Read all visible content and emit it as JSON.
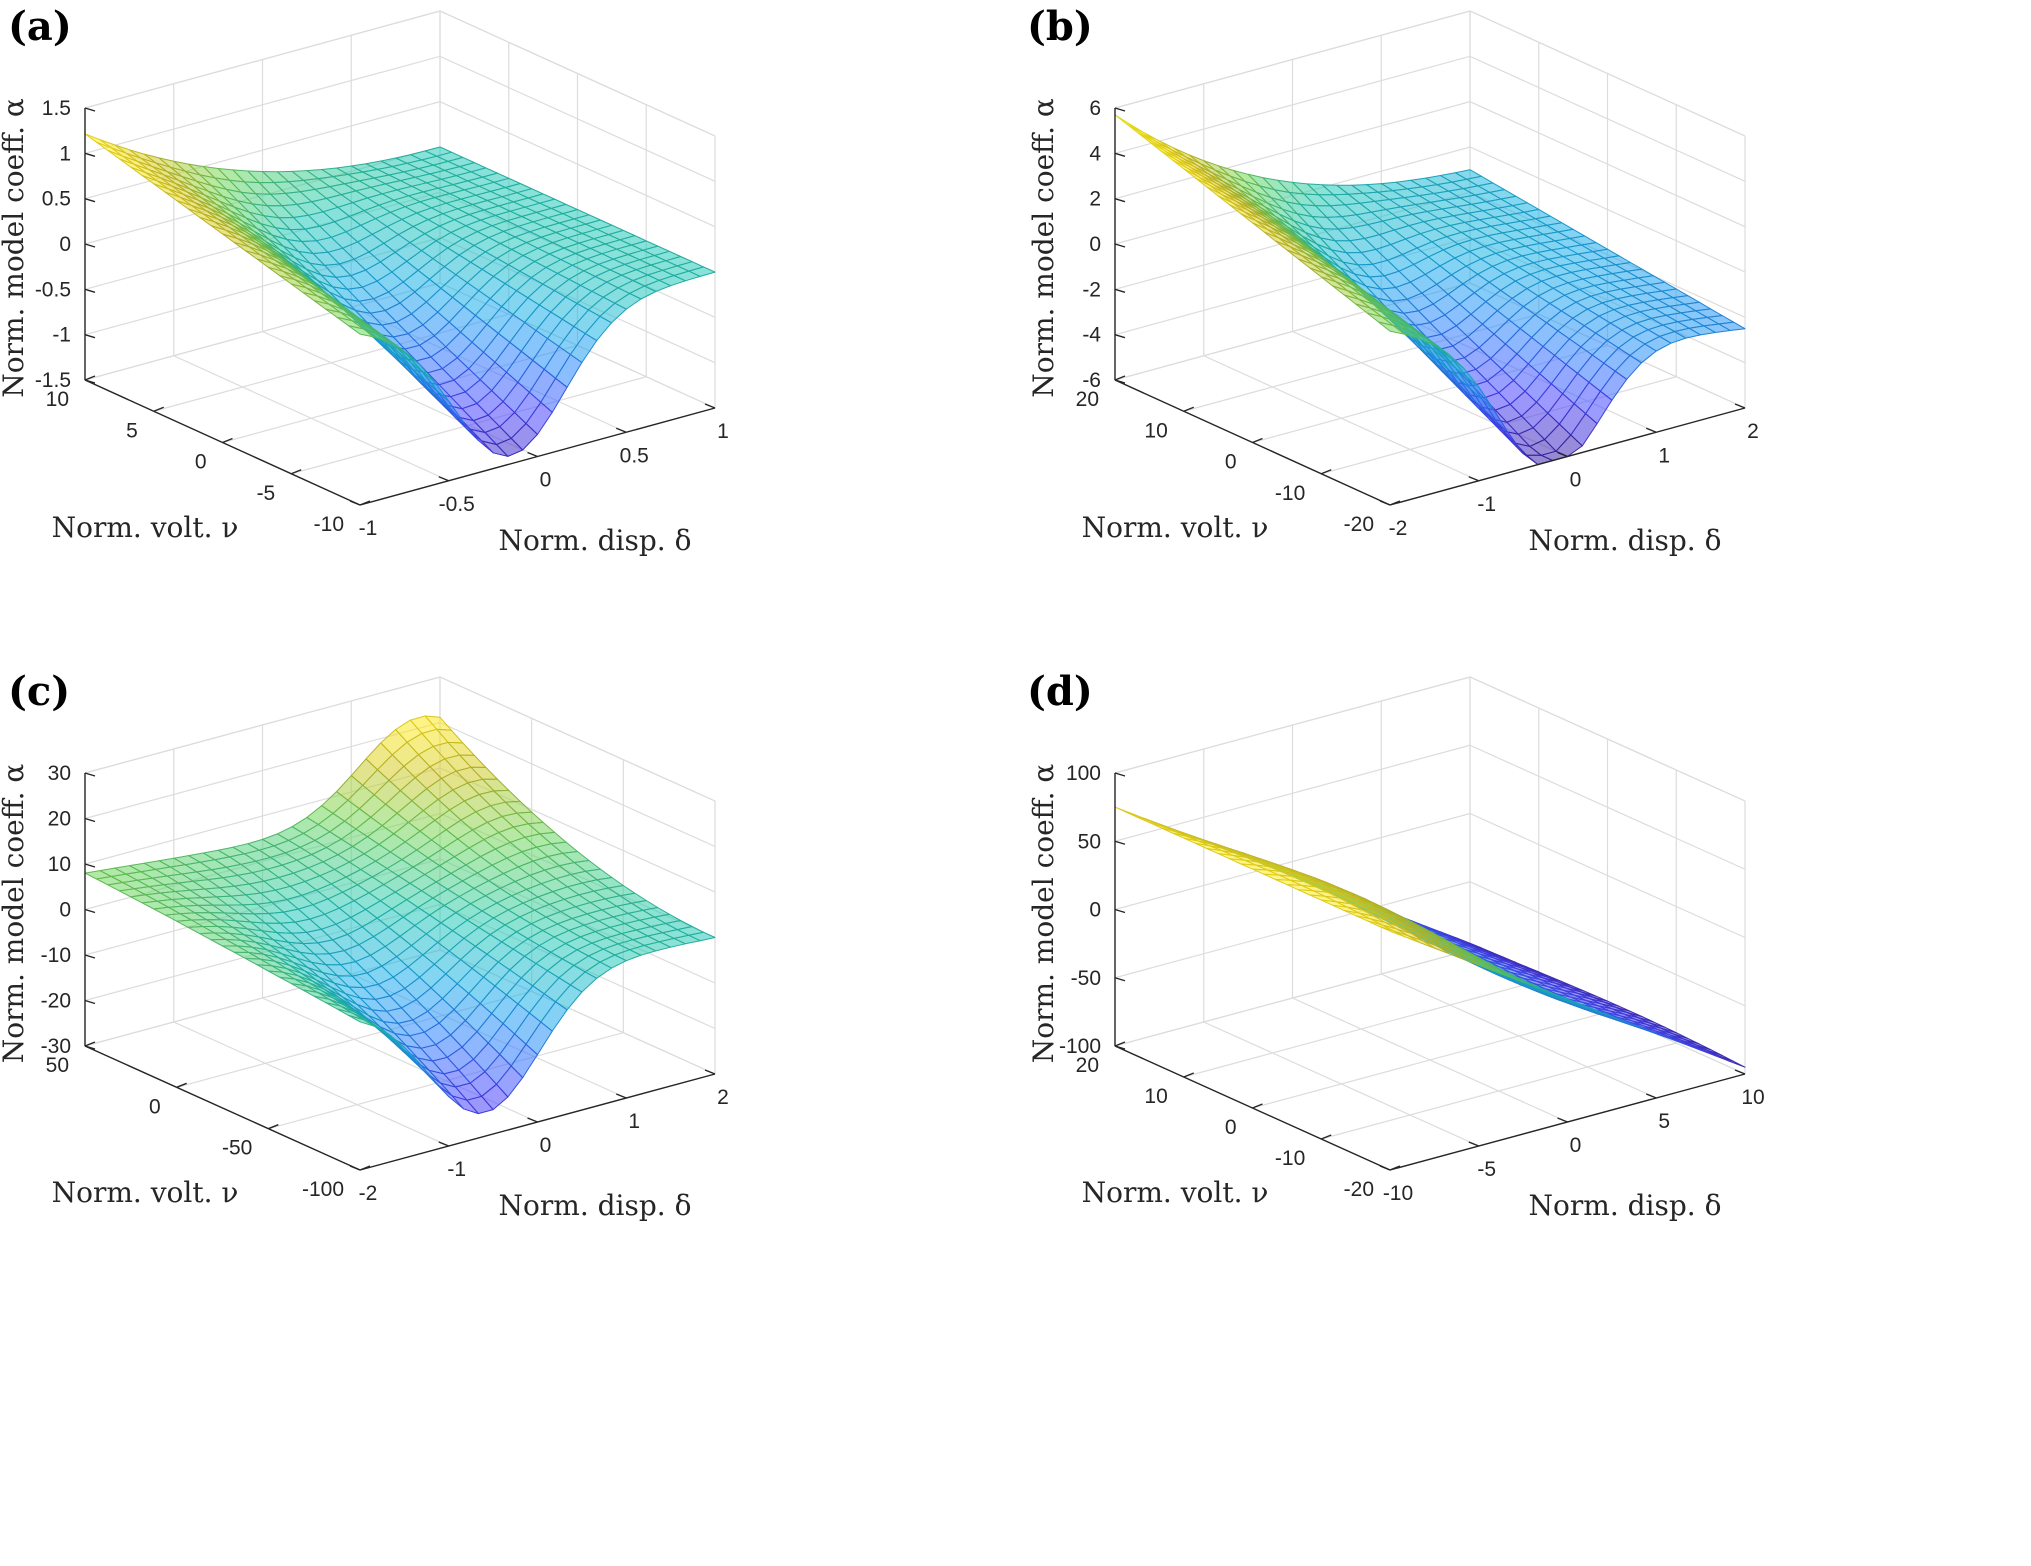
{
  "colors": {
    "colormap": [
      "#3e26a8",
      "#4743f8",
      "#2c7bf4",
      "#1ca9df",
      "#25c0b0",
      "#6ccd5a",
      "#c8c129",
      "#fbe41e",
      "#f9fb0e"
    ],
    "axis": "#262626",
    "grid": "#dcdcdc"
  },
  "chart_data": [
    {
      "panel": "a",
      "label": "(a)",
      "type": "surface",
      "surface_kind": "well",
      "zlabel": "Norm. model coeff. α",
      "ylabel": "Norm. volt. ν",
      "xlabel": "Norm. disp. δ",
      "xlim": [
        -1,
        1
      ],
      "ylim": [
        -10,
        10
      ],
      "zlim": [
        -1.5,
        1.5
      ],
      "x_ticks": [
        "-1",
        "-0.5",
        "0",
        "0.5",
        "1"
      ],
      "y_ticks": [
        "10",
        "5",
        "0",
        "-5",
        "-10"
      ],
      "z_ticks": [
        "1.5",
        "1",
        "0.5",
        "0",
        "-0.5",
        "-1",
        "-1.5"
      ],
      "surface_notes": {
        "corner_max": 1.35,
        "min": -1.4,
        "far_edge": 0.0
      }
    },
    {
      "panel": "b",
      "label": "(b)",
      "type": "surface",
      "surface_kind": "well-tilt",
      "zlabel": "Norm. model coeff. α",
      "ylabel": "Norm. volt. ν",
      "xlabel": "Norm. disp. δ",
      "xlim": [
        -2,
        2
      ],
      "ylim": [
        -20,
        20
      ],
      "zlim": [
        -6,
        6
      ],
      "x_ticks": [
        "-2",
        "-1",
        "0",
        "1",
        "2"
      ],
      "y_ticks": [
        "20",
        "10",
        "0",
        "-10",
        "-20"
      ],
      "z_ticks": [
        "6",
        "4",
        "2",
        "0",
        "-2",
        "-4",
        "-6"
      ],
      "surface_notes": {
        "corner_max": 5.7,
        "min": -6,
        "far_edge": -2.5
      }
    },
    {
      "panel": "c",
      "label": "(c)",
      "type": "surface",
      "surface_kind": "saddle",
      "zlabel": "Norm. model coeff. α",
      "ylabel": "Norm. volt. ν",
      "xlabel": "Norm. disp. δ",
      "xlim": [
        -2,
        2
      ],
      "ylim": [
        -100,
        50
      ],
      "zlim": [
        -30,
        30
      ],
      "x_ticks": [
        "-2",
        "-1",
        "0",
        "1",
        "2"
      ],
      "y_ticks": [
        "50",
        "0",
        "-50",
        "-100"
      ],
      "z_ticks": [
        "30",
        "20",
        "10",
        "0",
        "-10",
        "-20",
        "-30"
      ],
      "surface_notes": {
        "corner_max": 8,
        "min": -28,
        "peak": 22
      }
    },
    {
      "panel": "d",
      "label": "(d)",
      "type": "surface",
      "surface_kind": "ramp",
      "zlabel": "Norm. model coeff. α",
      "ylabel": "Norm. volt. ν",
      "xlabel": "Norm. disp. δ",
      "xlim": [
        -10,
        10
      ],
      "ylim": [
        -20,
        20
      ],
      "zlim": [
        -100,
        100
      ],
      "x_ticks": [
        "-10",
        "-5",
        "0",
        "5",
        "10"
      ],
      "y_ticks": [
        "20",
        "10",
        "0",
        "-10",
        "-20"
      ],
      "z_ticks": [
        "100",
        "50",
        "0",
        "-50",
        "-100"
      ],
      "surface_notes": {
        "corner_max": 75,
        "min": -95
      }
    }
  ]
}
